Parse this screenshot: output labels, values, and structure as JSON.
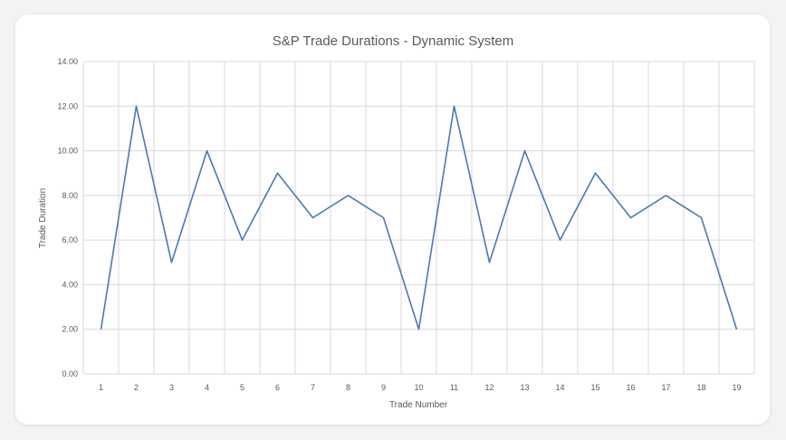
{
  "chart_data": {
    "type": "line",
    "title": "S&P Trade Durations - Dynamic System",
    "xlabel": "Trade Number",
    "ylabel": "Trade Duration",
    "categories": [
      "1",
      "2",
      "3",
      "4",
      "5",
      "6",
      "7",
      "8",
      "9",
      "10",
      "11",
      "12",
      "13",
      "14",
      "15",
      "16",
      "17",
      "18",
      "19"
    ],
    "values": [
      2,
      12,
      5,
      10,
      6,
      9,
      7,
      8,
      7,
      2,
      12,
      5,
      10,
      6,
      9,
      7,
      8,
      7,
      2
    ],
    "ylim": [
      0,
      14
    ],
    "yticks": [
      "0.00",
      "2.00",
      "4.00",
      "6.00",
      "8.00",
      "10.00",
      "12.00",
      "14.00"
    ],
    "grid": true,
    "line_color": "#4a78b8",
    "grid_color": "#d9d9d9"
  }
}
